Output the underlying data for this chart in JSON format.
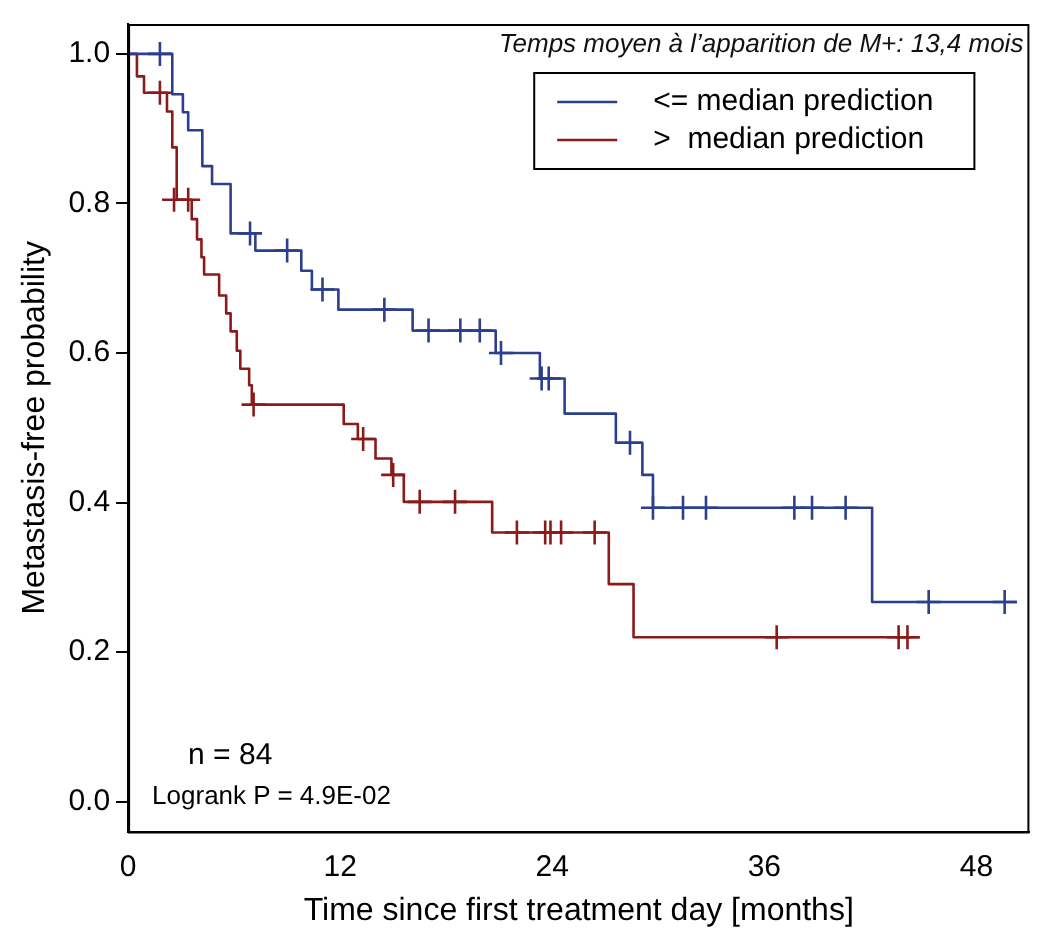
{
  "chart_data": {
    "type": "step",
    "xlabel": "Time since first treatment day [months]",
    "ylabel": "Metastasis-free probability",
    "xlim": [
      0,
      51
    ],
    "xticks": [
      0,
      12,
      24,
      36,
      48
    ],
    "ylim": [
      -0.04,
      1.04
    ],
    "yticks": [
      {
        "value": 0,
        "label": "0.0"
      },
      0.2,
      0.4,
      0.6,
      0.8,
      {
        "value": 1,
        "label": "1.0"
      }
    ],
    "grid": false,
    "legend": "top right",
    "annotations": [
      "Temps moyen à l’apparition de M+: 13,4 mois",
      "n = 84",
      "Logrank P = 4.9E-02"
    ],
    "series": [
      {
        "name": "<= median prediction",
        "color": "#2b3f8c",
        "x": [
          0,
          2.5,
          3.1,
          3.4,
          4.2,
          4.75,
          5.8,
          7.2,
          9.8,
          10.4,
          11.9,
          16.1,
          20.8,
          23.3,
          24.7,
          27.6,
          29.1,
          29.7,
          42.1,
          50.3
        ],
        "values": [
          1,
          0.946,
          0.922,
          0.898,
          0.85,
          0.826,
          0.76,
          0.737,
          0.71,
          0.685,
          0.658,
          0.63,
          0.6,
          0.566,
          0.519,
          0.48,
          0.437,
          0.393,
          0.267,
          0.267
        ]
      },
      {
        "name": ">  median prediction",
        "color": "#8b1a1a",
        "x": [
          0,
          0.5,
          0.9,
          2.2,
          2.5,
          2.75,
          3.6,
          3.9,
          4.15,
          4.3,
          5.15,
          5.55,
          5.8,
          6.15,
          6.35,
          6.85,
          7.0,
          12.2,
          13.0,
          14.0,
          14.9,
          15.6,
          20.6,
          27.2,
          28.6,
          44.8
        ],
        "values": [
          1,
          0.97,
          0.948,
          0.923,
          0.875,
          0.805,
          0.779,
          0.752,
          0.728,
          0.705,
          0.677,
          0.653,
          0.629,
          0.603,
          0.579,
          0.557,
          0.531,
          0.505,
          0.485,
          0.459,
          0.437,
          0.401,
          0.36,
          0.291,
          0.22,
          0.22
        ]
      },
      {
        "color": "#2b3f8c",
        "type": "scatter",
        "marker": "cross",
        "x": [
          1.8,
          6.9,
          9.0,
          11.0,
          14.5,
          17.0,
          18.8,
          19.9,
          21.1,
          23.4,
          23.8,
          28.4,
          29.7,
          31.4,
          32.7,
          37.7,
          38.7,
          40.6,
          45.3,
          49.6
        ],
        "values": [
          1,
          0.76,
          0.737,
          0.685,
          0.658,
          0.63,
          0.63,
          0.63,
          0.6,
          0.566,
          0.566,
          0.48,
          0.393,
          0.393,
          0.393,
          0.393,
          0.393,
          0.393,
          0.267,
          0.267
        ]
      },
      {
        "color": "#8b1a1a",
        "type": "scatter",
        "marker": "cross",
        "x": [
          1.8,
          2.6,
          3.4,
          7.1,
          13.3,
          15.0,
          16.5,
          18.5,
          22.0,
          23.6,
          23.9,
          24.5,
          26.4,
          36.7,
          43.6,
          44.1
        ],
        "values": [
          0.948,
          0.805,
          0.805,
          0.531,
          0.485,
          0.437,
          0.401,
          0.401,
          0.36,
          0.36,
          0.36,
          0.36,
          0.36,
          0.22,
          0.22,
          0.22
        ]
      }
    ]
  }
}
